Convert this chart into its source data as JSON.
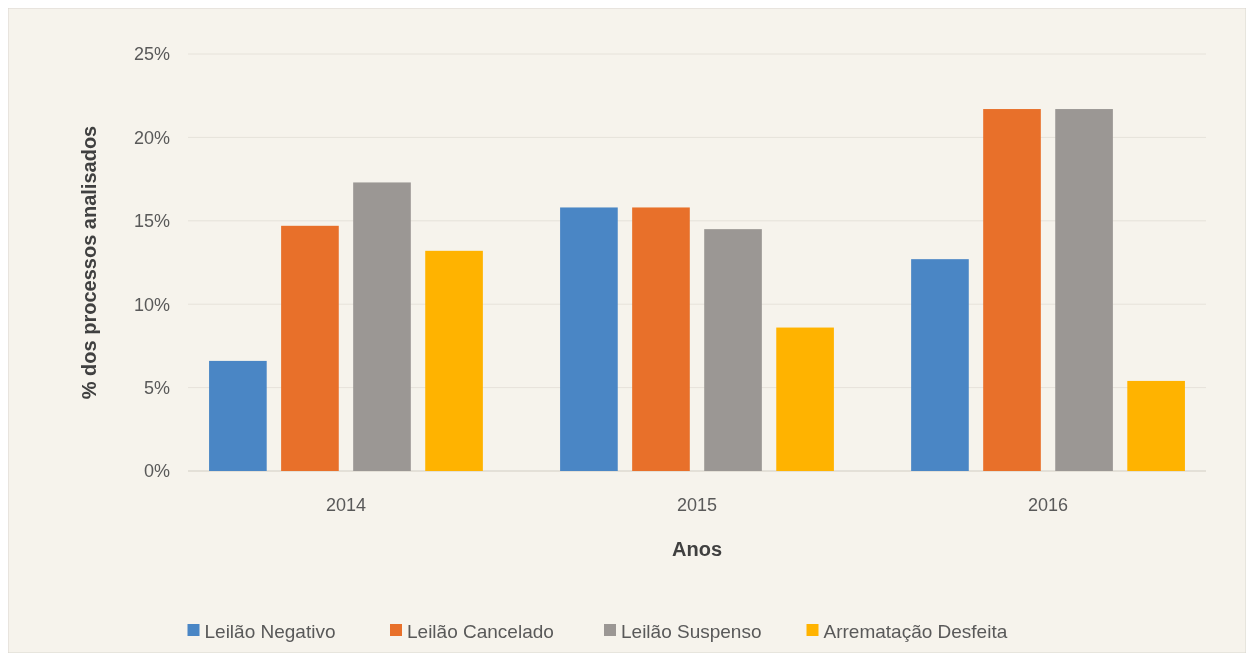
{
  "chart_data": {
    "type": "bar",
    "xlabel": "Anos",
    "ylabel": "% dos processos analisados",
    "categories": [
      "2014",
      "2015",
      "2016"
    ],
    "series": [
      {
        "name": "Leilão Negativo",
        "color": "#4a86c5",
        "values": [
          6.6,
          15.8,
          12.7
        ]
      },
      {
        "name": "Leilão Cancelado",
        "color": "#e8702a",
        "values": [
          14.7,
          15.8,
          21.7
        ]
      },
      {
        "name": "Leilão Suspenso",
        "color": "#9b9794",
        "values": [
          17.3,
          14.5,
          21.7
        ]
      },
      {
        "name": "Arrematação Desfeita",
        "color": "#ffb300",
        "values": [
          13.2,
          8.6,
          5.4
        ]
      }
    ],
    "ylim": [
      0,
      25
    ],
    "yticks": [
      {
        "value": 0,
        "label": "0%"
      },
      {
        "value": 5,
        "label": "5%"
      },
      {
        "value": 10,
        "label": "10%"
      },
      {
        "value": 15,
        "label": "15%"
      },
      {
        "value": 20,
        "label": "20%"
      },
      {
        "value": 25,
        "label": "25%"
      }
    ],
    "grid": "y",
    "legend": "bottom"
  }
}
